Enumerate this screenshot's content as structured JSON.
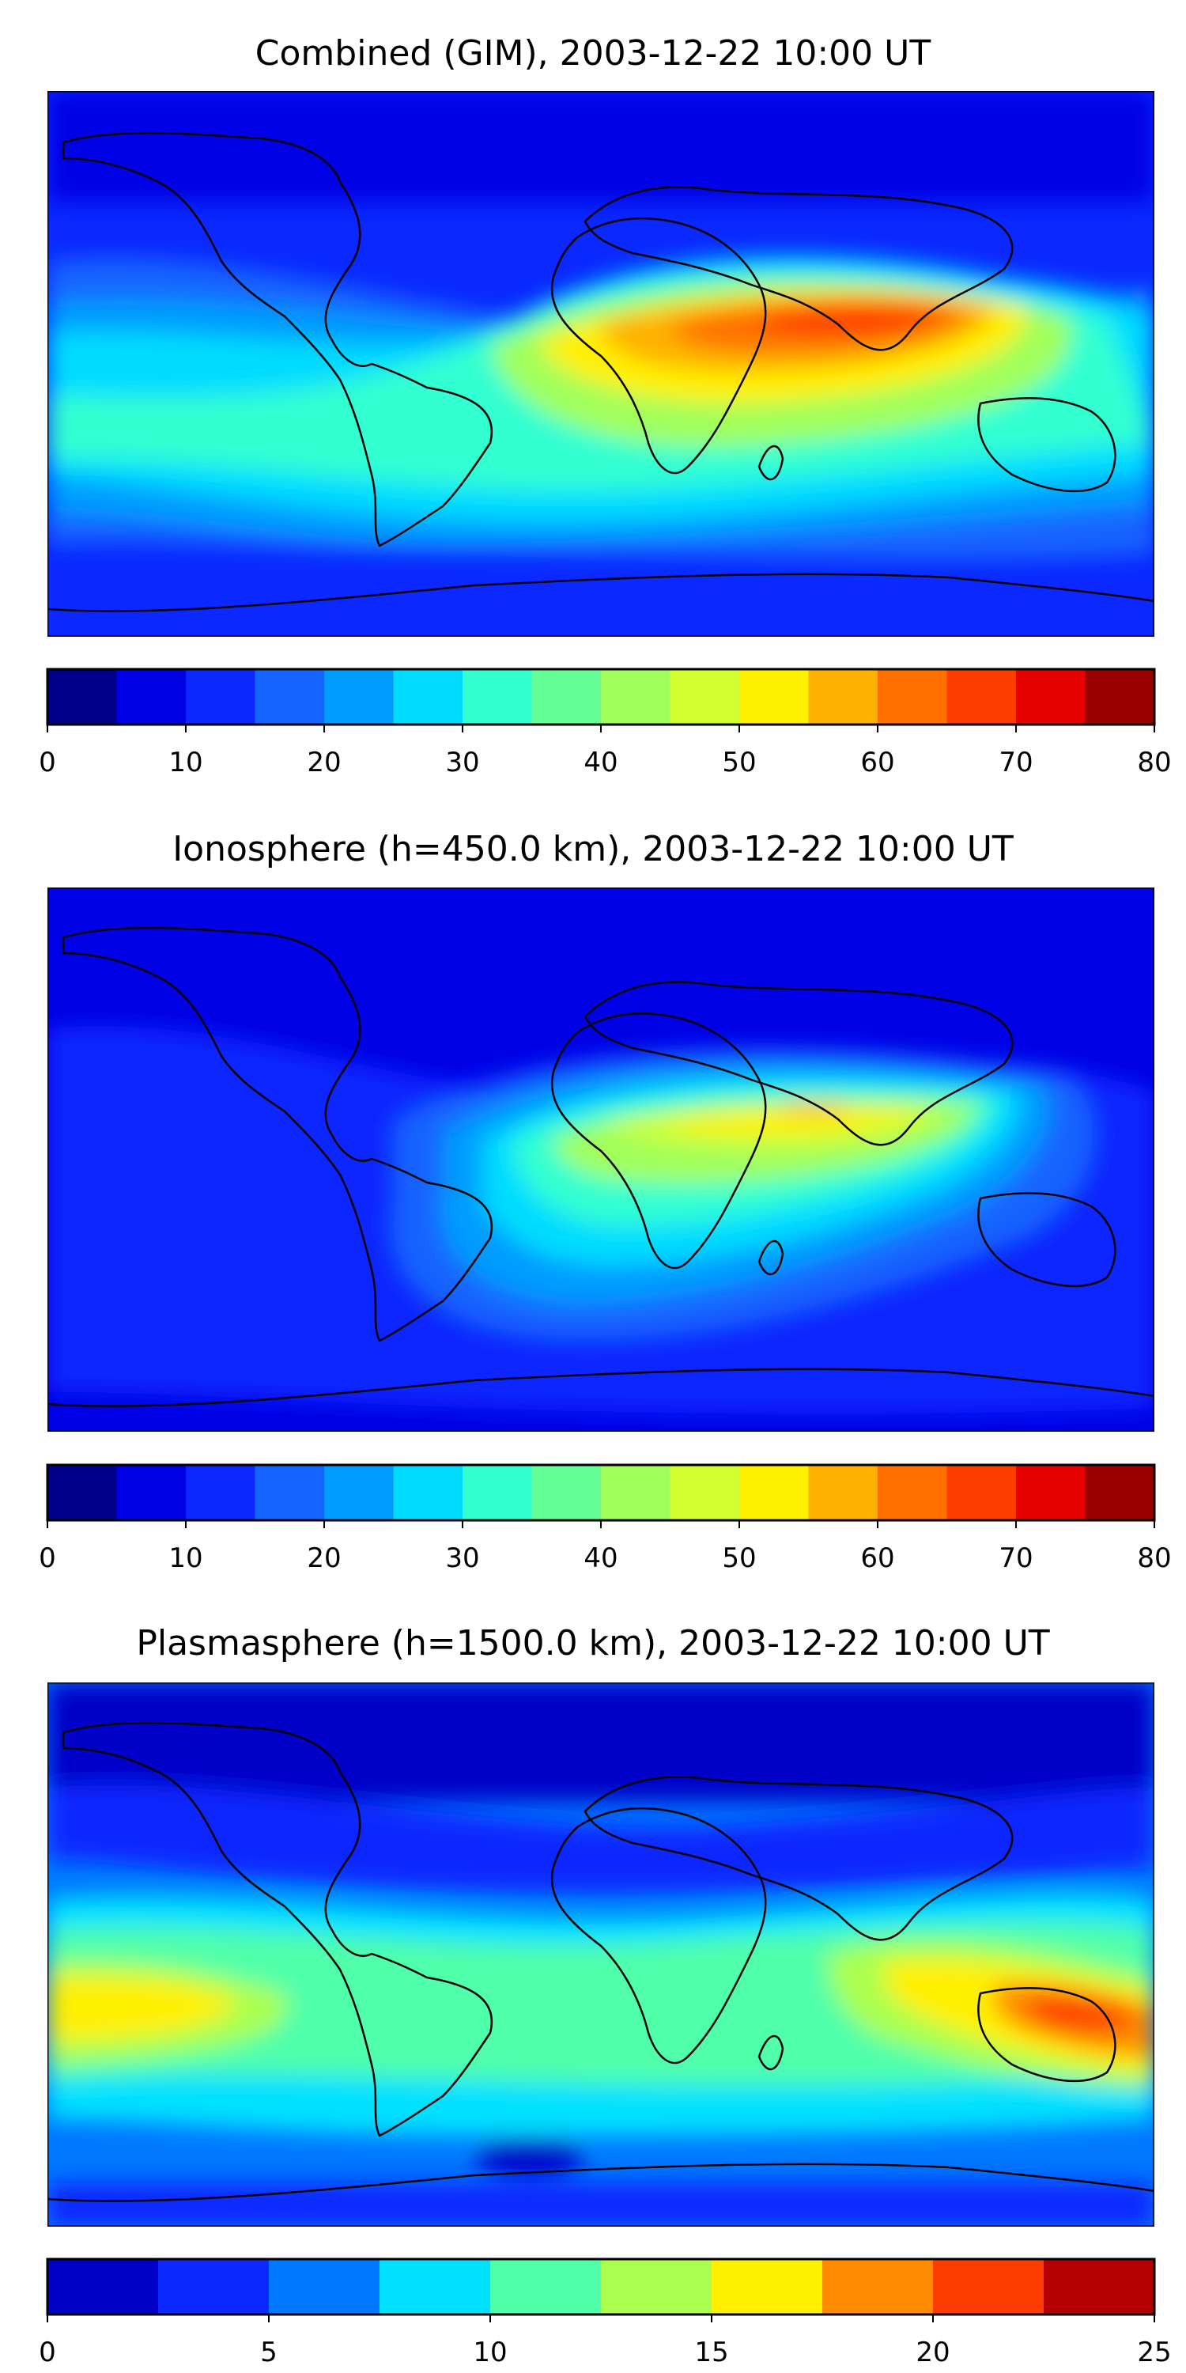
{
  "panels": [
    {
      "title": "Combined (GIM), 2003-12-22 10:00 UT",
      "colorbar": {
        "colors": [
          "#00008c",
          "#0000e6",
          "#0a28ff",
          "#1464ff",
          "#009cff",
          "#00dcff",
          "#32ffd2",
          "#64ff96",
          "#a0ff5a",
          "#d2ff32",
          "#fff000",
          "#ffb000",
          "#ff7000",
          "#ff3c00",
          "#e60000",
          "#9b0000"
        ],
        "tick_labels": [
          "0",
          "10",
          "20",
          "30",
          "40",
          "50",
          "60",
          "70",
          "80"
        ]
      }
    },
    {
      "title": "Ionosphere  (h=450.0 km), 2003-12-22 10:00 UT",
      "colorbar": {
        "colors": [
          "#00008c",
          "#0000e6",
          "#0a28ff",
          "#1464ff",
          "#009cff",
          "#00dcff",
          "#32ffd2",
          "#64ff96",
          "#a0ff5a",
          "#d2ff32",
          "#fff000",
          "#ffb000",
          "#ff7000",
          "#ff3c00",
          "#e60000",
          "#9b0000"
        ],
        "tick_labels": [
          "0",
          "10",
          "20",
          "30",
          "40",
          "50",
          "60",
          "70",
          "80"
        ]
      }
    },
    {
      "title": "Plasmasphere (h=1500.0 km), 2003-12-22 10:00 UT",
      "colorbar": {
        "colors": [
          "#0000c8",
          "#0a28ff",
          "#0078ff",
          "#00e1ff",
          "#50ffaa",
          "#aaff50",
          "#fff000",
          "#ff8c00",
          "#ff3c00",
          "#b40000"
        ],
        "tick_labels": [
          "0",
          "5",
          "10",
          "15",
          "20",
          "25"
        ]
      }
    }
  ]
}
